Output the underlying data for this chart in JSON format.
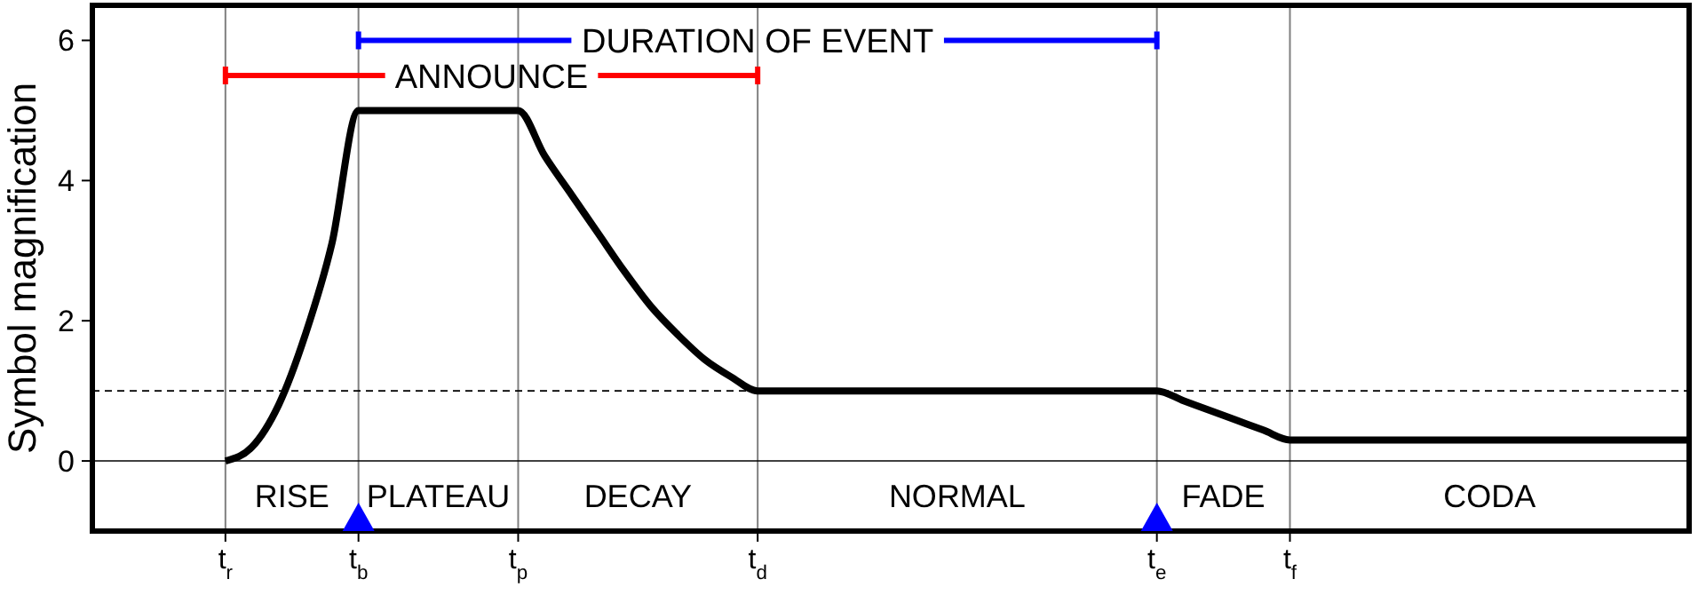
{
  "chart_data": {
    "type": "line",
    "ylabel": "Symbol magnification",
    "ylim": [
      -1,
      6.5
    ],
    "categories": [
      null,
      null,
      null,
      null,
      null,
      "t$_{r}$",
      null,
      null,
      null,
      null,
      "t$_{b}$",
      null,
      null,
      null,
      null,
      null,
      "t$_{p}$",
      null,
      null,
      null,
      null,
      null,
      null,
      null,
      null,
      "t$_{d}$",
      null,
      null,
      null,
      null,
      null,
      null,
      null,
      null,
      null,
      null,
      null,
      null,
      null,
      null,
      "t$_{e}$",
      null,
      null,
      null,
      null,
      "t$_{f}$",
      null,
      null,
      null,
      null,
      null,
      null,
      null,
      null,
      null,
      null,
      null,
      null,
      null,
      null,
      null
    ],
    "yticks": [
      0,
      2,
      4,
      6
    ],
    "grid": "x",
    "marker": "none",
    "line_style": "solid",
    "series": [
      {
        "color": "#000000",
        "values": [
          null,
          null,
          null,
          null,
          null,
          0,
          0.2,
          0.8,
          1.8,
          3.1,
          5,
          5,
          5,
          5,
          5,
          5,
          5,
          4.35,
          3.8,
          3.25,
          2.7,
          2.2,
          1.8,
          1.45,
          1.2,
          1,
          1,
          1,
          1,
          1,
          1,
          1,
          1,
          1,
          1,
          1,
          1,
          1,
          1,
          1,
          1,
          0.86,
          0.72,
          0.58,
          0.44,
          0.3,
          0.3,
          0.3,
          0.3,
          0.3,
          0.3,
          0.3,
          0.3,
          0.3,
          0.3,
          0.3,
          0.3,
          0.3,
          0.3,
          0.3,
          0.3
        ]
      },
      {
        "name": "ANNOUNCE",
        "color": "#ff0000",
        "values": [
          null,
          null,
          null,
          null,
          null,
          5.5,
          5.5,
          5.5,
          5.5,
          5.5,
          5.5,
          5.5,
          null,
          null,
          null,
          null,
          null,
          null,
          null,
          5.5,
          5.5,
          5.5,
          5.5,
          5.5,
          5.5,
          5.5,
          null,
          null,
          null,
          null,
          null,
          null,
          null,
          null,
          null,
          null,
          null,
          null,
          null,
          null,
          null,
          null,
          null,
          null,
          null,
          null,
          null,
          null,
          null,
          null,
          null,
          null,
          null,
          null,
          null,
          null,
          null,
          null,
          null,
          null,
          null
        ]
      },
      {
        "name": "DURATION OF EVENT",
        "color": "#0000ff",
        "values": [
          null,
          null,
          null,
          null,
          null,
          null,
          null,
          null,
          null,
          null,
          6,
          6,
          6,
          6,
          6,
          6,
          6,
          6,
          6,
          null,
          null,
          null,
          null,
          null,
          null,
          null,
          null,
          null,
          null,
          null,
          null,
          null,
          6,
          6,
          6,
          6,
          6,
          6,
          6,
          6,
          6,
          null,
          null,
          null,
          null,
          null,
          null,
          null,
          null,
          null,
          null,
          null,
          null,
          null,
          null,
          null,
          null,
          null,
          null,
          null,
          null
        ]
      }
    ],
    "ref_lines": [
      {
        "axis": "y",
        "value": 0,
        "color": "#000000",
        "line_style": "solid"
      },
      {
        "axis": "y",
        "value": 1,
        "color": "#000000",
        "line_style": "dashed"
      }
    ],
    "annotations": [
      "RISE",
      "PLATEAU",
      "DECAY",
      "NORMAL",
      "FADE",
      "CODA"
    ]
  }
}
